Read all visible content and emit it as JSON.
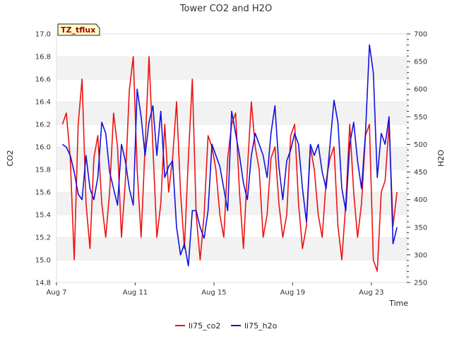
{
  "chart_data": {
    "type": "line",
    "title": "Tower CO2 and H2O",
    "badge": "TZ_tflux",
    "xlabel": "Time",
    "ylabel_left": "CO2",
    "ylabel_right": "H2O",
    "x_ticks": [
      "Aug 7",
      "Aug 11",
      "Aug 15",
      "Aug 19",
      "Aug 23"
    ],
    "x_tick_days": [
      7,
      11,
      15,
      19,
      23
    ],
    "xlim_days": [
      7,
      24.8
    ],
    "ylim_left": [
      14.8,
      17.0
    ],
    "yticks_left": [
      "14.8",
      "15.0",
      "15.2",
      "15.4",
      "15.6",
      "15.8",
      "16.0",
      "16.2",
      "16.4",
      "16.6",
      "16.8",
      "17.0"
    ],
    "ylim_right": [
      250,
      700
    ],
    "yticks_right": [
      "250",
      "300",
      "350",
      "400",
      "450",
      "500",
      "550",
      "600",
      "650",
      "700"
    ],
    "grid": "horizontal bands",
    "legend_position": "bottom",
    "colors": {
      "co2": "#ee1111",
      "h2o": "#1111dd",
      "band": "#f2f2f2",
      "badge_bg": "#ffffcc"
    },
    "series": [
      {
        "name": "li75_co2",
        "axis": "left",
        "x": [
          7.3,
          7.5,
          7.7,
          7.9,
          8.1,
          8.3,
          8.5,
          8.7,
          8.9,
          9.1,
          9.3,
          9.5,
          9.7,
          9.9,
          10.1,
          10.3,
          10.5,
          10.7,
          10.9,
          11.1,
          11.3,
          11.5,
          11.7,
          11.9,
          12.1,
          12.3,
          12.5,
          12.7,
          12.9,
          13.1,
          13.3,
          13.5,
          13.7,
          13.9,
          14.1,
          14.3,
          14.5,
          14.7,
          14.9,
          15.1,
          15.3,
          15.5,
          15.7,
          15.9,
          16.1,
          16.3,
          16.5,
          16.7,
          16.9,
          17.1,
          17.3,
          17.5,
          17.7,
          17.9,
          18.1,
          18.3,
          18.5,
          18.7,
          18.9,
          19.1,
          19.3,
          19.5,
          19.7,
          19.9,
          20.1,
          20.3,
          20.5,
          20.7,
          20.9,
          21.1,
          21.3,
          21.5,
          21.7,
          21.9,
          22.1,
          22.3,
          22.5,
          22.7,
          22.9,
          23.1,
          23.3,
          23.5,
          23.7,
          23.9,
          24.1,
          24.3
        ],
        "y": [
          16.2,
          16.3,
          15.9,
          15.0,
          16.2,
          16.6,
          15.5,
          15.1,
          15.9,
          16.1,
          15.5,
          15.2,
          15.6,
          16.3,
          16.0,
          15.2,
          15.7,
          16.5,
          16.8,
          15.8,
          15.2,
          16.0,
          16.8,
          16.0,
          15.2,
          15.5,
          16.2,
          15.6,
          15.9,
          16.4,
          15.6,
          15.1,
          15.9,
          16.6,
          15.4,
          15.0,
          15.4,
          16.1,
          16.0,
          15.8,
          15.4,
          15.2,
          15.9,
          16.2,
          16.3,
          15.6,
          15.1,
          15.8,
          16.4,
          16.0,
          15.8,
          15.2,
          15.4,
          15.9,
          16.0,
          15.5,
          15.2,
          15.4,
          16.1,
          16.2,
          15.5,
          15.1,
          15.3,
          16.0,
          15.8,
          15.4,
          15.2,
          15.7,
          15.9,
          16.0,
          15.3,
          15.0,
          15.5,
          16.2,
          15.6,
          15.2,
          15.5,
          16.1,
          16.2,
          15.0,
          14.9,
          15.6,
          15.7,
          16.2,
          15.3,
          15.6
        ]
      },
      {
        "name": "li75_h2o",
        "axis": "right",
        "x": [
          7.3,
          7.5,
          7.7,
          7.9,
          8.1,
          8.3,
          8.5,
          8.7,
          8.9,
          9.1,
          9.3,
          9.5,
          9.7,
          9.9,
          10.1,
          10.3,
          10.5,
          10.7,
          10.9,
          11.1,
          11.3,
          11.5,
          11.7,
          11.9,
          12.1,
          12.3,
          12.5,
          12.7,
          12.9,
          13.1,
          13.3,
          13.5,
          13.7,
          13.9,
          14.1,
          14.3,
          14.5,
          14.7,
          14.9,
          15.1,
          15.3,
          15.5,
          15.7,
          15.9,
          16.1,
          16.3,
          16.5,
          16.7,
          16.9,
          17.1,
          17.3,
          17.5,
          17.7,
          17.9,
          18.1,
          18.3,
          18.5,
          18.7,
          18.9,
          19.1,
          19.3,
          19.5,
          19.7,
          19.9,
          20.1,
          20.3,
          20.5,
          20.7,
          20.9,
          21.1,
          21.3,
          21.5,
          21.7,
          21.9,
          22.1,
          22.3,
          22.5,
          22.7,
          22.9,
          23.1,
          23.3,
          23.5,
          23.7,
          23.9,
          24.1,
          24.3
        ],
        "y": [
          500,
          495,
          480,
          450,
          410,
          400,
          480,
          420,
          400,
          440,
          540,
          520,
          450,
          420,
          390,
          500,
          470,
          420,
          390,
          600,
          550,
          480,
          540,
          570,
          480,
          560,
          440,
          460,
          470,
          350,
          300,
          320,
          280,
          380,
          380,
          350,
          330,
          380,
          500,
          480,
          460,
          420,
          380,
          560,
          520,
          480,
          430,
          400,
          480,
          520,
          500,
          480,
          440,
          520,
          570,
          460,
          400,
          470,
          490,
          520,
          500,
          420,
          360,
          500,
          480,
          500,
          450,
          420,
          500,
          580,
          540,
          420,
          380,
          500,
          540,
          470,
          420,
          520,
          680,
          630,
          440,
          520,
          500,
          550,
          320,
          350
        ]
      }
    ]
  }
}
